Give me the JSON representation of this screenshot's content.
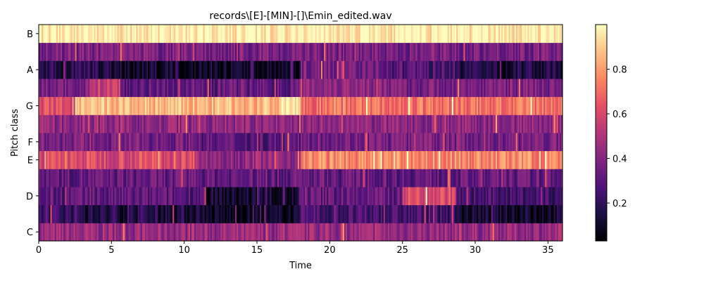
{
  "chart_data": {
    "type": "heatmap",
    "title": "records\\[E]-[MIN]-[]\\Emin_edited.wav",
    "xlabel": "Time",
    "ylabel": "Pitch class",
    "xlim": [
      0,
      36
    ],
    "x_ticks": [
      "0",
      "5",
      "10",
      "15",
      "20",
      "25",
      "30",
      "35"
    ],
    "y_ticks": [
      "C",
      "D",
      "E",
      "F",
      "G",
      "A",
      "B"
    ],
    "pitch_rows": [
      "C",
      "C#",
      "D",
      "D#",
      "E",
      "F",
      "F#",
      "G",
      "G#",
      "A",
      "A#",
      "B"
    ],
    "colormap": "magma",
    "colorbar": {
      "range": [
        0.03,
        1.0
      ],
      "ticks": [
        "0.2",
        "0.4",
        "0.6",
        "0.8"
      ]
    },
    "row_profiles": [
      {
        "pitch": "C",
        "segments": [
          [
            0,
            36,
            0.42
          ]
        ]
      },
      {
        "pitch": "C#",
        "segments": [
          [
            0,
            3.0,
            0.2
          ],
          [
            3.0,
            11.5,
            0.12
          ],
          [
            11.5,
            18.0,
            0.05
          ],
          [
            18.0,
            28.7,
            0.22
          ],
          [
            28.7,
            36.0,
            0.08
          ]
        ]
      },
      {
        "pitch": "D",
        "segments": [
          [
            0,
            11.5,
            0.28
          ],
          [
            11.5,
            18.0,
            0.08
          ],
          [
            18.0,
            25.0,
            0.3
          ],
          [
            25.0,
            28.7,
            0.6
          ],
          [
            28.7,
            36.0,
            0.22
          ]
        ]
      },
      {
        "pitch": "D#",
        "segments": [
          [
            0,
            36,
            0.3
          ]
        ]
      },
      {
        "pitch": "E",
        "segments": [
          [
            0,
            11.0,
            0.6
          ],
          [
            11.0,
            18.0,
            0.42
          ],
          [
            18.0,
            36.0,
            0.75
          ]
        ]
      },
      {
        "pitch": "F",
        "segments": [
          [
            0,
            11.0,
            0.35
          ],
          [
            11.0,
            18.0,
            0.28
          ],
          [
            18.0,
            36.0,
            0.35
          ]
        ]
      },
      {
        "pitch": "F#",
        "segments": [
          [
            0,
            36,
            0.4
          ]
        ]
      },
      {
        "pitch": "G",
        "segments": [
          [
            0,
            2.5,
            0.6
          ],
          [
            2.5,
            16.5,
            0.85
          ],
          [
            16.5,
            18.0,
            0.98
          ],
          [
            18.0,
            36.0,
            0.7
          ]
        ]
      },
      {
        "pitch": "G#",
        "segments": [
          [
            0,
            3.5,
            0.35
          ],
          [
            3.5,
            5.5,
            0.55
          ],
          [
            5.5,
            18.0,
            0.3
          ],
          [
            18.0,
            23.5,
            0.42
          ],
          [
            23.5,
            36.0,
            0.35
          ]
        ]
      },
      {
        "pitch": "A",
        "segments": [
          [
            0,
            5.0,
            0.15
          ],
          [
            5.0,
            11.0,
            0.08
          ],
          [
            11.0,
            18.0,
            0.05
          ],
          [
            18.0,
            23.5,
            0.35
          ],
          [
            23.5,
            28.7,
            0.25
          ],
          [
            28.7,
            36.0,
            0.12
          ]
        ]
      },
      {
        "pitch": "A#",
        "segments": [
          [
            0,
            36,
            0.35
          ]
        ]
      },
      {
        "pitch": "B",
        "segments": [
          [
            0,
            36,
            0.97
          ]
        ]
      }
    ]
  }
}
